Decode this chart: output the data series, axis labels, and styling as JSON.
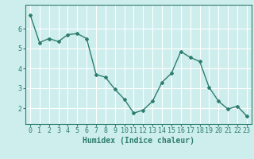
{
  "x": [
    0,
    1,
    2,
    3,
    4,
    5,
    6,
    7,
    8,
    9,
    10,
    11,
    12,
    13,
    14,
    15,
    16,
    17,
    18,
    19,
    20,
    21,
    22,
    23
  ],
  "y": [
    6.7,
    5.3,
    5.5,
    5.35,
    5.7,
    5.75,
    5.5,
    3.7,
    3.55,
    2.95,
    2.45,
    1.75,
    1.9,
    2.35,
    3.3,
    3.75,
    4.85,
    4.55,
    4.35,
    3.05,
    2.35,
    1.95,
    2.1,
    1.6
  ],
  "line_color": "#2e7d6e",
  "marker": "D",
  "markersize": 2.0,
  "linewidth": 1.0,
  "bg_color": "#ceeeed",
  "grid_color": "#ffffff",
  "xlabel": "Humidex (Indice chaleur)",
  "xlabel_fontsize": 7,
  "tick_fontsize": 6,
  "yticks": [
    2,
    3,
    4,
    5,
    6
  ],
  "ylim": [
    1.2,
    7.2
  ],
  "xlim": [
    -0.5,
    23.5
  ],
  "xticks": [
    0,
    1,
    2,
    3,
    4,
    5,
    6,
    7,
    8,
    9,
    10,
    11,
    12,
    13,
    14,
    15,
    16,
    17,
    18,
    19,
    20,
    21,
    22,
    23
  ]
}
